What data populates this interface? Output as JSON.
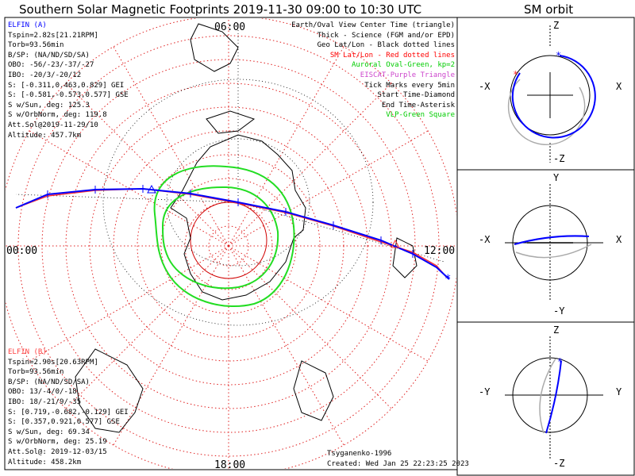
{
  "title": "Southern Solar Magnetic Footprints 2019-11-30 09:00 to 10:30 UTC",
  "orbit_title": "SM orbit",
  "main_map": {
    "hour_labels": {
      "top": "06:00",
      "left": "00:00",
      "right": "12:00",
      "bottom": "18:00"
    }
  },
  "elfin_a": {
    "heading": "ELFIN (A)",
    "lines": [
      "Tspin=2.82s[21.21RPM]",
      "Torb=93.56min",
      "B/SP: (NA/ND/SD/SA)",
      "OBO: -56/-23/-37/-27",
      "IBO: -20/3/-20/12",
      "S: [-0.311,0.463,0.829] GEI",
      "S: [-0.581,-0.573,0.577] GSE",
      "S w/Sun, deg: 125.3",
      "S w/OrbNorm, deg: 119.8",
      "Att.Sol@2019-11-29/10",
      "Altitude: 457.7km"
    ],
    "color": "#0000ff"
  },
  "elfin_b": {
    "heading": "ELFIN (B)",
    "lines": [
      "Tspin=2.90s[20.63RPM]",
      "Torb=93.56min",
      "B/SP: (NA/ND/SD/SA)",
      "OBO: 13/-4/0/-18",
      "IBO: 18/-21/9/-35",
      "S: [0.719,-0.682,-0.129] GEI",
      "S: [0.357,0.921,0.577] GSE",
      "S w/Sun, deg: 69.34",
      "S w/OrbNorm, deg: 25.19",
      "Att.Sol@: 2019-12-03/15",
      "Altitude: 458.2km"
    ],
    "color": "#ff4040"
  },
  "legend": [
    {
      "text": "Earth/Oval View Center Time (triangle)",
      "color": "#000000"
    },
    {
      "text": "Thick - Science (FGM and/or EPD)",
      "color": "#000000"
    },
    {
      "text": "Geo Lat/Lon - Black dotted lines",
      "color": "#000000"
    },
    {
      "text": "SM Lat/Lon - Red dotted lines",
      "color": "#ff0000"
    },
    {
      "text": "Auroral Oval-Green, kp=2",
      "color": "#00cc00"
    },
    {
      "text": "EISCAT-Purple Triangle",
      "color": "#cc44cc"
    },
    {
      "text": "Tick Marks every 5min",
      "color": "#000000"
    },
    {
      "text": "Start Time-Diamond",
      "color": "#000000"
    },
    {
      "text": "End Time-Asterisk",
      "color": "#000000"
    },
    {
      "text": "VLP-Green Square",
      "color": "#00cc00"
    }
  ],
  "credit": "Tsyganenko-1996",
  "created": "Created: Wed Jan 25 22:23:25 2023",
  "orbit_panels": [
    {
      "top": "Z",
      "bottom": "-Z",
      "left": "-X",
      "right": "X"
    },
    {
      "top": "Y",
      "bottom": "-Y",
      "left": "-X",
      "right": "X"
    },
    {
      "top": "Z",
      "bottom": "-Z",
      "left": "-Y",
      "right": "Y"
    }
  ]
}
